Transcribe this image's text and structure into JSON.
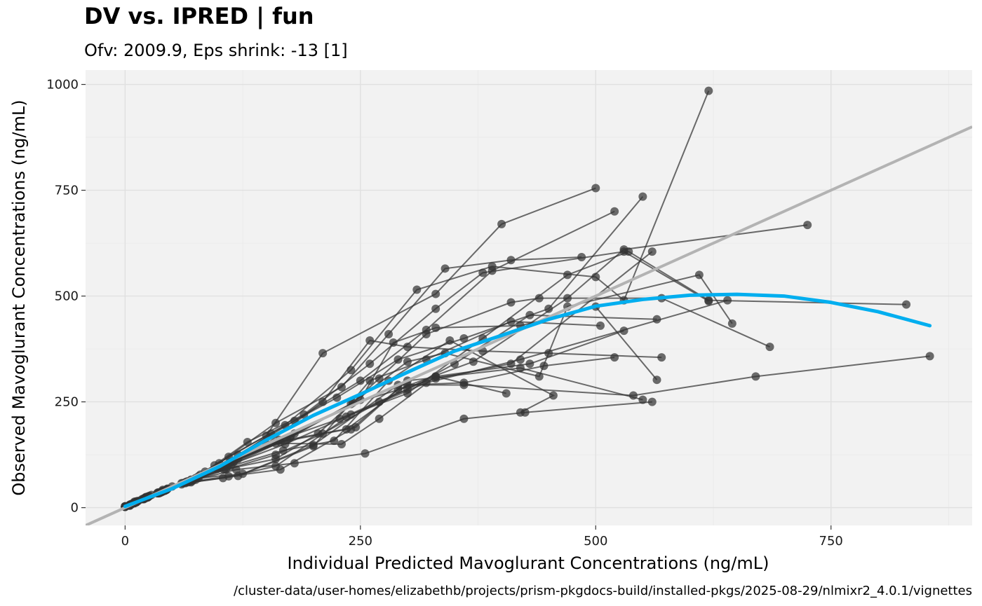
{
  "chart_data": {
    "type": "scatter",
    "title": "DV vs. IPRED | fun",
    "subtitle": "Ofv: 2009.9, Eps shrink: -13 [1]",
    "xlabel": "Individual Predicted Mavoglurant Concentrations (ng/mL)",
    "ylabel": "Observed Mavoglurant Concentrations (ng/mL)",
    "caption": "/cluster-data/user-homes/elizabethb/projects/prism-pkgdocs-build/installed-pkgs/2025-08-29/nlmixr2_4.0.1/vignettes",
    "xlim": [
      -42,
      900
    ],
    "ylim": [
      -42,
      1034
    ],
    "x_ticks": [
      0,
      250,
      500,
      750
    ],
    "y_ticks": [
      0,
      250,
      500,
      750,
      1000
    ],
    "x_tick_labels": [
      "0",
      "250",
      "500",
      "750"
    ],
    "y_tick_labels": [
      "0",
      "250",
      "500",
      "750",
      "1000"
    ],
    "grid": true,
    "colors": {
      "panel": "#f2f2f2",
      "grid": "#e0e0e0",
      "points": "#333333",
      "identity": "#b3b3b3",
      "smooth": "#00aeef"
    },
    "series": [
      {
        "points": [
          [
            0,
            3
          ],
          [
            5,
            7
          ],
          [
            10,
            14
          ],
          [
            20,
            22
          ],
          [
            35,
            36
          ],
          [
            60,
            55
          ],
          [
            95,
            100
          ],
          [
            150,
            170
          ],
          [
            210,
            365
          ],
          [
            330,
            505
          ],
          [
            400,
            670
          ],
          [
            500,
            755
          ]
        ]
      },
      {
        "points": [
          [
            0,
            3
          ],
          [
            6,
            8
          ],
          [
            12,
            15
          ],
          [
            25,
            27
          ],
          [
            40,
            42
          ],
          [
            70,
            65
          ],
          [
            110,
            120
          ],
          [
            170,
            195
          ],
          [
            240,
            325
          ],
          [
            310,
            515
          ],
          [
            390,
            570
          ],
          [
            500,
            545
          ],
          [
            530,
            490
          ],
          [
            620,
            985
          ]
        ]
      },
      {
        "points": [
          [
            0,
            2
          ],
          [
            5,
            6
          ],
          [
            10,
            12
          ],
          [
            22,
            25
          ],
          [
            35,
            35
          ],
          [
            65,
            60
          ],
          [
            100,
            105
          ],
          [
            160,
            200
          ],
          [
            230,
            285
          ],
          [
            280,
            410
          ],
          [
            340,
            565
          ],
          [
            410,
            585
          ],
          [
            485,
            592
          ]
        ]
      },
      {
        "points": [
          [
            0,
            2
          ],
          [
            5,
            6
          ],
          [
            10,
            12
          ],
          [
            20,
            21
          ],
          [
            40,
            40
          ],
          [
            80,
            78
          ],
          [
            120,
            125
          ],
          [
            180,
            205
          ],
          [
            250,
            300
          ],
          [
            320,
            420
          ],
          [
            390,
            560
          ],
          [
            520,
            700
          ]
        ]
      },
      {
        "points": [
          [
            0,
            3
          ],
          [
            7,
            9
          ],
          [
            14,
            16
          ],
          [
            28,
            30
          ],
          [
            50,
            50
          ],
          [
            85,
            85
          ],
          [
            130,
            155
          ],
          [
            190,
            220
          ],
          [
            260,
            340
          ],
          [
            330,
            470
          ],
          [
            380,
            555
          ],
          [
            530,
            605
          ],
          [
            620,
            488
          ]
        ]
      },
      {
        "points": [
          [
            0,
            2
          ],
          [
            4,
            5
          ],
          [
            9,
            11
          ],
          [
            18,
            20
          ],
          [
            35,
            34
          ],
          [
            62,
            58
          ],
          [
            102,
            95
          ],
          [
            155,
            175
          ],
          [
            225,
            260
          ],
          [
            290,
            350
          ],
          [
            360,
            400
          ],
          [
            450,
            470
          ],
          [
            550,
            735
          ]
        ]
      },
      {
        "points": [
          [
            0,
            3
          ],
          [
            6,
            7
          ],
          [
            13,
            15
          ],
          [
            26,
            28
          ],
          [
            45,
            45
          ],
          [
            75,
            70
          ],
          [
            115,
            108
          ],
          [
            175,
            165
          ],
          [
            240,
            245
          ],
          [
            330,
            305
          ],
          [
            410,
            340
          ],
          [
            560,
            605
          ]
        ]
      },
      {
        "points": [
          [
            0,
            2
          ],
          [
            5,
            6
          ],
          [
            11,
            12
          ],
          [
            23,
            25
          ],
          [
            40,
            38
          ],
          [
            70,
            66
          ],
          [
            110,
            100
          ],
          [
            170,
            150
          ],
          [
            235,
            215
          ],
          [
            320,
            295
          ],
          [
            420,
            350
          ],
          [
            640,
            490
          ]
        ]
      },
      {
        "points": [
          [
            0,
            3
          ],
          [
            6,
            7
          ],
          [
            12,
            14
          ],
          [
            24,
            26
          ],
          [
            42,
            40
          ],
          [
            72,
            66
          ],
          [
            112,
            108
          ],
          [
            172,
            160
          ],
          [
            245,
            190
          ],
          [
            290,
            280
          ],
          [
            370,
            345
          ],
          [
            470,
            495
          ],
          [
            530,
            610
          ],
          [
            725,
            668
          ]
        ]
      },
      {
        "points": [
          [
            0,
            2
          ],
          [
            5,
            5
          ],
          [
            10,
            11
          ],
          [
            20,
            21
          ],
          [
            37,
            36
          ],
          [
            64,
            60
          ],
          [
            104,
            98
          ],
          [
            164,
            160
          ],
          [
            228,
            210
          ],
          [
            300,
            280
          ],
          [
            350,
            340
          ],
          [
            430,
            455
          ],
          [
            565,
            445
          ]
        ]
      },
      {
        "points": [
          [
            0,
            3
          ],
          [
            6,
            7
          ],
          [
            12,
            13
          ],
          [
            25,
            26
          ],
          [
            45,
            44
          ],
          [
            78,
            74
          ],
          [
            120,
            115
          ],
          [
            180,
            175
          ],
          [
            250,
            255
          ],
          [
            285,
            390
          ],
          [
            330,
            425
          ],
          [
            420,
            430
          ],
          [
            500,
            475
          ],
          [
            565,
            302
          ]
        ]
      },
      {
        "points": [
          [
            0,
            2
          ],
          [
            4,
            5
          ],
          [
            9,
            10
          ],
          [
            19,
            20
          ],
          [
            34,
            34
          ],
          [
            60,
            58
          ],
          [
            98,
            92
          ],
          [
            150,
            150
          ],
          [
            210,
            250
          ],
          [
            260,
            395
          ],
          [
            300,
            380
          ],
          [
            380,
            370
          ],
          [
            450,
            365
          ],
          [
            570,
            355
          ]
        ]
      },
      {
        "points": [
          [
            0,
            3
          ],
          [
            5,
            6
          ],
          [
            10,
            12
          ],
          [
            22,
            24
          ],
          [
            38,
            37
          ],
          [
            66,
            62
          ],
          [
            106,
            98
          ],
          [
            160,
            152
          ],
          [
            230,
            150
          ],
          [
            270,
            210
          ],
          [
            330,
            310
          ],
          [
            405,
            270
          ]
        ]
      },
      {
        "points": [
          [
            0,
            2
          ],
          [
            6,
            7
          ],
          [
            12,
            13
          ],
          [
            24,
            25
          ],
          [
            43,
            41
          ],
          [
            74,
            68
          ],
          [
            116,
            110
          ],
          [
            176,
            168
          ],
          [
            242,
            248
          ],
          [
            300,
            345
          ],
          [
            340,
            365
          ],
          [
            440,
            310
          ],
          [
            470,
            475
          ],
          [
            610,
            550
          ],
          [
            645,
            435
          ]
        ]
      },
      {
        "points": [
          [
            0,
            3
          ],
          [
            5,
            6
          ],
          [
            11,
            12
          ],
          [
            22,
            23
          ],
          [
            39,
            38
          ],
          [
            68,
            62
          ],
          [
            108,
            96
          ],
          [
            165,
            155
          ],
          [
            235,
            185
          ],
          [
            300,
            290
          ],
          [
            360,
            295
          ],
          [
            445,
            335
          ],
          [
            520,
            355
          ]
        ]
      },
      {
        "points": [
          [
            0,
            2
          ],
          [
            5,
            5
          ],
          [
            10,
            11
          ],
          [
            21,
            22
          ],
          [
            38,
            36
          ],
          [
            67,
            60
          ],
          [
            107,
            90
          ],
          [
            160,
            125
          ],
          [
            210,
            175
          ],
          [
            270,
            250
          ],
          [
            330,
            310
          ],
          [
            430,
            340
          ],
          [
            530,
            418
          ]
        ]
      },
      {
        "points": [
          [
            0,
            3
          ],
          [
            6,
            7
          ],
          [
            12,
            13
          ],
          [
            24,
            24
          ],
          [
            42,
            40
          ],
          [
            72,
            64
          ],
          [
            112,
            98
          ],
          [
            168,
            135
          ],
          [
            222,
            158
          ],
          [
            280,
            300
          ],
          [
            345,
            395
          ],
          [
            455,
            265
          ],
          [
            420,
            225
          ]
        ]
      },
      {
        "points": [
          [
            0,
            2
          ],
          [
            5,
            6
          ],
          [
            10,
            12
          ],
          [
            21,
            22
          ],
          [
            37,
            35
          ],
          [
            65,
            60
          ],
          [
            105,
            90
          ],
          [
            160,
            115
          ],
          [
            205,
            175
          ],
          [
            270,
            305
          ],
          [
            320,
            410
          ],
          [
            410,
            485
          ],
          [
            440,
            495
          ],
          [
            570,
            495
          ],
          [
            685,
            380
          ]
        ]
      },
      {
        "points": [
          [
            0,
            3
          ],
          [
            6,
            7
          ],
          [
            12,
            13
          ],
          [
            25,
            26
          ],
          [
            44,
            42
          ],
          [
            75,
            66
          ],
          [
            118,
            90
          ],
          [
            180,
            105
          ],
          [
            255,
            128
          ],
          [
            360,
            210
          ],
          [
            425,
            225
          ],
          [
            560,
            250
          ]
        ]
      },
      {
        "points": [
          [
            0,
            2
          ],
          [
            5,
            6
          ],
          [
            11,
            12
          ],
          [
            22,
            23
          ],
          [
            39,
            37
          ],
          [
            70,
            62
          ],
          [
            110,
            74
          ],
          [
            165,
            90
          ],
          [
            240,
            185
          ],
          [
            300,
            300
          ],
          [
            420,
            330
          ],
          [
            550,
            255
          ]
        ]
      },
      {
        "points": [
          [
            0,
            3
          ],
          [
            6,
            7
          ],
          [
            12,
            13
          ],
          [
            24,
            25
          ],
          [
            41,
            40
          ],
          [
            70,
            60
          ],
          [
            120,
            75
          ],
          [
            200,
            145
          ],
          [
            260,
            300
          ],
          [
            320,
            350
          ],
          [
            410,
            440
          ],
          [
            505,
            430
          ]
        ]
      },
      {
        "points": [
          [
            0,
            2
          ],
          [
            5,
            5
          ],
          [
            10,
            11
          ],
          [
            20,
            20
          ],
          [
            36,
            34
          ],
          [
            64,
            58
          ],
          [
            104,
            70
          ],
          [
            160,
            98
          ],
          [
            240,
            220
          ],
          [
            300,
            270
          ],
          [
            380,
            400
          ],
          [
            470,
            550
          ],
          [
            535,
            605
          ],
          [
            620,
            490
          ],
          [
            830,
            480
          ]
        ]
      },
      {
        "points": [
          [
            0,
            3
          ],
          [
            6,
            7
          ],
          [
            12,
            13
          ],
          [
            25,
            26
          ],
          [
            44,
            43
          ],
          [
            78,
            70
          ],
          [
            125,
            80
          ],
          [
            200,
            148
          ],
          [
            290,
            290
          ],
          [
            360,
            290
          ],
          [
            540,
            265
          ],
          [
            670,
            310
          ],
          [
            855,
            358
          ]
        ]
      }
    ],
    "identity_line": {
      "slope": 1,
      "intercept": 0
    },
    "smooth_curve": {
      "x": [
        0,
        50,
        100,
        150,
        200,
        250,
        300,
        350,
        400,
        450,
        500,
        550,
        600,
        650,
        700,
        750,
        800,
        855
      ],
      "y": [
        3,
        45,
        97,
        160,
        218,
        268,
        320,
        370,
        407,
        445,
        476,
        492,
        502,
        504,
        500,
        485,
        463,
        430
      ]
    }
  }
}
